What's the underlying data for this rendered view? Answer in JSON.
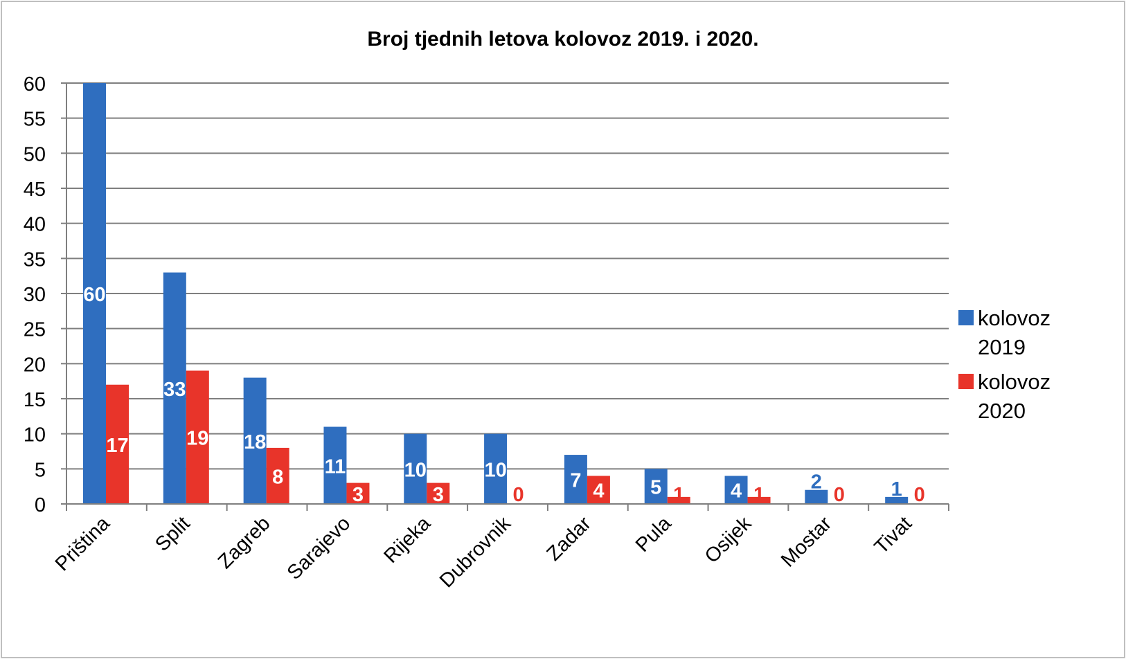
{
  "chart_data": {
    "type": "bar",
    "title": "Broj tjednih letova kolovoz 2019. i 2020.",
    "xlabel": "",
    "ylabel": "",
    "ylim": [
      0,
      60
    ],
    "ytick_step": 5,
    "grid": true,
    "legend_position": "right",
    "categories": [
      "Priština",
      "Split",
      "Zagreb",
      "Sarajevo",
      "Rijeka",
      "Dubrovnik",
      "Zadar",
      "Pula",
      "Osijek",
      "Mostar",
      "Tivat"
    ],
    "series": [
      {
        "name": "kolovoz 2019",
        "color": "#2f6ebf",
        "values": [
          60,
          33,
          18,
          11,
          10,
          10,
          7,
          5,
          4,
          2,
          1
        ]
      },
      {
        "name": "kolovoz 2020",
        "color": "#e8342a",
        "values": [
          17,
          19,
          8,
          3,
          3,
          0,
          4,
          1,
          1,
          0,
          0
        ]
      }
    ]
  }
}
